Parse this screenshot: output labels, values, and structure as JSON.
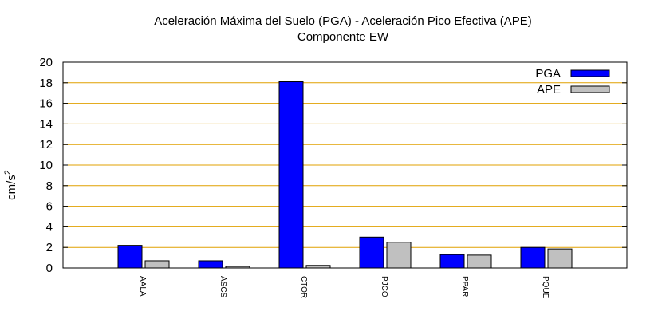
{
  "chart_data": {
    "type": "bar",
    "title": "Aceleración Máxima del Suelo (PGA) -  Aceleración Pico Efectiva (APE)",
    "subtitle": "Componente EW",
    "xlabel": "",
    "ylabel": "cm/s",
    "ylabel_sup": "2",
    "ylim": [
      0,
      20
    ],
    "yticks": [
      0,
      2,
      4,
      6,
      8,
      10,
      12,
      14,
      16,
      18,
      20
    ],
    "grid": true,
    "legend_position": "top-right",
    "categories": [
      "AALA",
      "ASCS",
      "CTOR",
      "PJCO",
      "PPAR",
      "PQUE"
    ],
    "series": [
      {
        "name": "PGA",
        "color": "#0000ff",
        "values": [
          2.2,
          0.7,
          18.1,
          3.0,
          1.3,
          2.0
        ]
      },
      {
        "name": "APE",
        "color": "#c0c0c0",
        "values": [
          0.7,
          0.15,
          0.25,
          2.5,
          1.25,
          1.85
        ]
      }
    ],
    "colors": {
      "grid": "#e0a000",
      "axis": "#000000"
    }
  }
}
